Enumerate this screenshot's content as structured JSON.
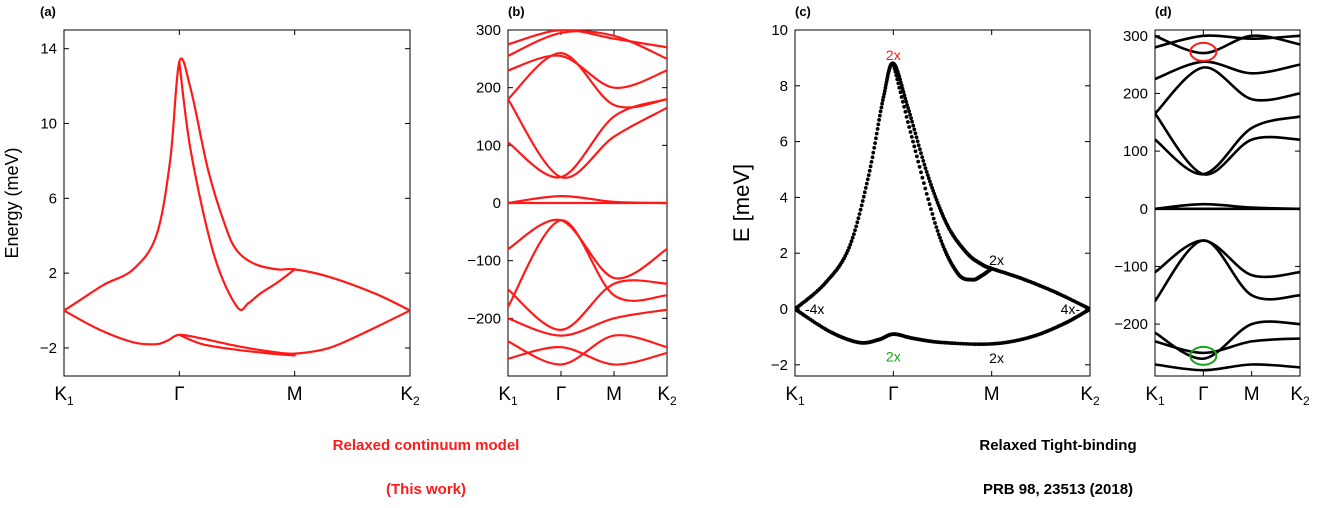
{
  "captions": {
    "left_line1": "Relaxed continuum model",
    "left_line2": "(This work)",
    "right_line1": "Relaxed Tight-binding",
    "right_line2": "PRB 98, 23513 (2018)"
  },
  "colors": {
    "continuum": "#ff1a1a",
    "tight_binding": "#000000",
    "ann_red": "#ff1a1a",
    "ann_green": "#1aa31a"
  },
  "chart_data": [
    {
      "panel": "(a)",
      "type": "line",
      "ylabel": "Energy (meV)",
      "xlabel": "",
      "xticks": [
        "K1",
        "Γ",
        "M",
        "K2"
      ],
      "ylim": [
        -3.5,
        15
      ],
      "yticks": [
        14,
        10,
        6,
        2,
        -2
      ],
      "color": "#ff1a1a",
      "series": [
        {
          "x": [
            0,
            0.15,
            0.35,
            0.6,
            0.8,
            0.92,
            1.0,
            1.1,
            1.25,
            1.4,
            1.5,
            1.65,
            1.85,
            2.0,
            2.3,
            2.7,
            3.0
          ],
          "y": [
            0,
            0.6,
            1.4,
            2.2,
            4.0,
            8.0,
            13.3,
            11.8,
            7.5,
            4.5,
            3.2,
            2.5,
            2.2,
            2.2,
            1.8,
            0.9,
            0
          ]
        },
        {
          "x": [
            1.0,
            1.1,
            1.3,
            1.5,
            1.6,
            1.7,
            1.85,
            2.0
          ],
          "y": [
            13.3,
            8.5,
            3.0,
            0.2,
            0.4,
            0.9,
            1.5,
            2.2
          ]
        },
        {
          "x": [
            0,
            0.3,
            0.6,
            0.8,
            0.9,
            1.0,
            1.2,
            1.5,
            1.8,
            2.0,
            2.3,
            2.6,
            3.0
          ],
          "y": [
            0,
            -1.0,
            -1.7,
            -1.8,
            -1.6,
            -1.3,
            -1.5,
            -1.9,
            -2.2,
            -2.3,
            -2.0,
            -1.2,
            0
          ]
        },
        {
          "x": [
            1.0,
            1.2,
            1.5,
            1.8,
            2.0
          ],
          "y": [
            -1.3,
            -1.8,
            -2.1,
            -2.3,
            -2.4
          ]
        }
      ]
    },
    {
      "panel": "(b)",
      "type": "line",
      "xticks": [
        "K1",
        "Γ",
        "M",
        "K2"
      ],
      "ylim": [
        -300,
        300
      ],
      "yticks": [
        300,
        200,
        100,
        0,
        -100,
        -200
      ],
      "color": "#ff1a1a",
      "series": [
        {
          "x": [
            0,
            1,
            2,
            3
          ],
          "y": [
            0,
            12,
            2,
            0
          ]
        },
        {
          "x": [
            0,
            1,
            2,
            3
          ],
          "y": [
            0,
            0,
            0,
            0
          ]
        },
        {
          "x": [
            0,
            1,
            2,
            3
          ],
          "y": [
            105,
            45,
            150,
            180
          ]
        },
        {
          "x": [
            0,
            1,
            2,
            3
          ],
          "y": [
            180,
            45,
            115,
            165
          ]
        },
        {
          "x": [
            0,
            1,
            2,
            3
          ],
          "y": [
            180,
            260,
            170,
            180
          ]
        },
        {
          "x": [
            0,
            1,
            2,
            3
          ],
          "y": [
            230,
            255,
            200,
            230
          ]
        },
        {
          "x": [
            0,
            1,
            2,
            3
          ],
          "y": [
            255,
            295,
            290,
            250
          ]
        },
        {
          "x": [
            0,
            1,
            2,
            3
          ],
          "y": [
            275,
            300,
            285,
            270
          ]
        },
        {
          "x": [
            0,
            1,
            2,
            3
          ],
          "y": [
            -80,
            -30,
            -130,
            -80
          ]
        },
        {
          "x": [
            0,
            1,
            2,
            3
          ],
          "y": [
            -180,
            -30,
            -160,
            -160
          ]
        },
        {
          "x": [
            0,
            1,
            2,
            3
          ],
          "y": [
            -150,
            -220,
            -140,
            -140
          ]
        },
        {
          "x": [
            0,
            1,
            2,
            3
          ],
          "y": [
            -200,
            -230,
            -200,
            -185
          ]
        },
        {
          "x": [
            0,
            1,
            2,
            3
          ],
          "y": [
            -240,
            -280,
            -230,
            -250
          ]
        },
        {
          "x": [
            0,
            1,
            2,
            3
          ],
          "y": [
            -270,
            -250,
            -280,
            -260
          ]
        }
      ]
    },
    {
      "panel": "(c)",
      "type": "scatter",
      "ylabel": "E [meV]",
      "xticks": [
        "K1",
        "Γ",
        "M",
        "K2"
      ],
      "ylim": [
        -2.4,
        10
      ],
      "yticks": [
        10,
        8,
        6,
        4,
        2,
        0,
        -2
      ],
      "color": "#000000",
      "annotations": [
        {
          "text": "2x",
          "color": "#ff1a1a",
          "x": 1.0,
          "y": 9.1
        },
        {
          "text": "2x",
          "color": "#000000",
          "x": 2.05,
          "y": 1.75
        },
        {
          "text": "-4x",
          "color": "#000000",
          "x": 0.2,
          "y": 0.0
        },
        {
          "text": "4x-",
          "color": "#000000",
          "x": 2.8,
          "y": 0.0
        },
        {
          "text": "2x",
          "color": "#1aa31a",
          "x": 1.0,
          "y": -1.7
        },
        {
          "text": "2x",
          "color": "#000000",
          "x": 2.05,
          "y": -1.75
        }
      ],
      "series": [
        {
          "x": [
            0,
            0.3,
            0.55,
            0.75,
            0.9,
            1.0,
            1.15,
            1.35,
            1.55,
            1.75,
            1.9,
            2.0,
            2.3,
            2.65,
            3.0
          ],
          "y": [
            0,
            0.9,
            2.2,
            4.8,
            7.6,
            8.8,
            7.2,
            4.8,
            3.0,
            2.0,
            1.6,
            1.45,
            1.1,
            0.6,
            0
          ]
        },
        {
          "x": [
            1.0,
            1.2,
            1.45,
            1.65,
            1.8,
            1.9,
            2.0
          ],
          "y": [
            8.8,
            6.0,
            2.8,
            1.3,
            1.05,
            1.2,
            1.45
          ]
        },
        {
          "x": [
            0,
            0.35,
            0.65,
            0.85,
            1.0,
            1.2,
            1.5,
            2.0,
            2.4,
            2.75,
            3.0
          ],
          "y": [
            0,
            -0.8,
            -1.2,
            -1.1,
            -0.9,
            -1.05,
            -1.2,
            -1.25,
            -1.0,
            -0.5,
            0
          ]
        }
      ]
    },
    {
      "panel": "(d)",
      "type": "line",
      "xticks": [
        "K1",
        "Γ",
        "M",
        "K2"
      ],
      "ylim": [
        -290,
        310
      ],
      "yticks": [
        300,
        200,
        100,
        0,
        -100,
        -200
      ],
      "color": "#000000",
      "annotations": [
        {
          "shape": "ellipse",
          "color": "#ff1a1a",
          "x": 1.0,
          "y": 272
        },
        {
          "shape": "ellipse",
          "color": "#1aa31a",
          "x": 1.0,
          "y": -255
        }
      ],
      "series": [
        {
          "x": [
            0,
            1,
            2,
            3
          ],
          "y": [
            0,
            8,
            2,
            0
          ]
        },
        {
          "x": [
            0,
            1,
            2,
            3
          ],
          "y": [
            0,
            0,
            0,
            0
          ]
        },
        {
          "x": [
            0,
            1,
            2,
            3
          ],
          "y": [
            120,
            60,
            140,
            160
          ]
        },
        {
          "x": [
            0,
            1,
            2,
            3
          ],
          "y": [
            165,
            60,
            120,
            120
          ]
        },
        {
          "x": [
            0,
            1,
            2,
            3
          ],
          "y": [
            165,
            245,
            190,
            200
          ]
        },
        {
          "x": [
            0,
            1,
            2,
            3
          ],
          "y": [
            225,
            255,
            235,
            250
          ]
        },
        {
          "x": [
            0,
            1,
            2,
            3
          ],
          "y": [
            280,
            300,
            295,
            300
          ]
        },
        {
          "x": [
            0,
            1,
            2,
            3
          ],
          "y": [
            300,
            270,
            300,
            285
          ]
        },
        {
          "x": [
            0,
            1,
            2,
            3
          ],
          "y": [
            -110,
            -55,
            -115,
            -110
          ]
        },
        {
          "x": [
            0,
            1,
            2,
            3
          ],
          "y": [
            -160,
            -55,
            -150,
            -150
          ]
        },
        {
          "x": [
            0,
            1,
            2,
            3
          ],
          "y": [
            -215,
            -260,
            -200,
            -200
          ]
        },
        {
          "x": [
            0,
            1,
            2,
            3
          ],
          "y": [
            -230,
            -250,
            -230,
            -225
          ]
        },
        {
          "x": [
            0,
            1,
            2,
            3
          ],
          "y": [
            -270,
            -280,
            -270,
            -275
          ]
        }
      ]
    }
  ]
}
